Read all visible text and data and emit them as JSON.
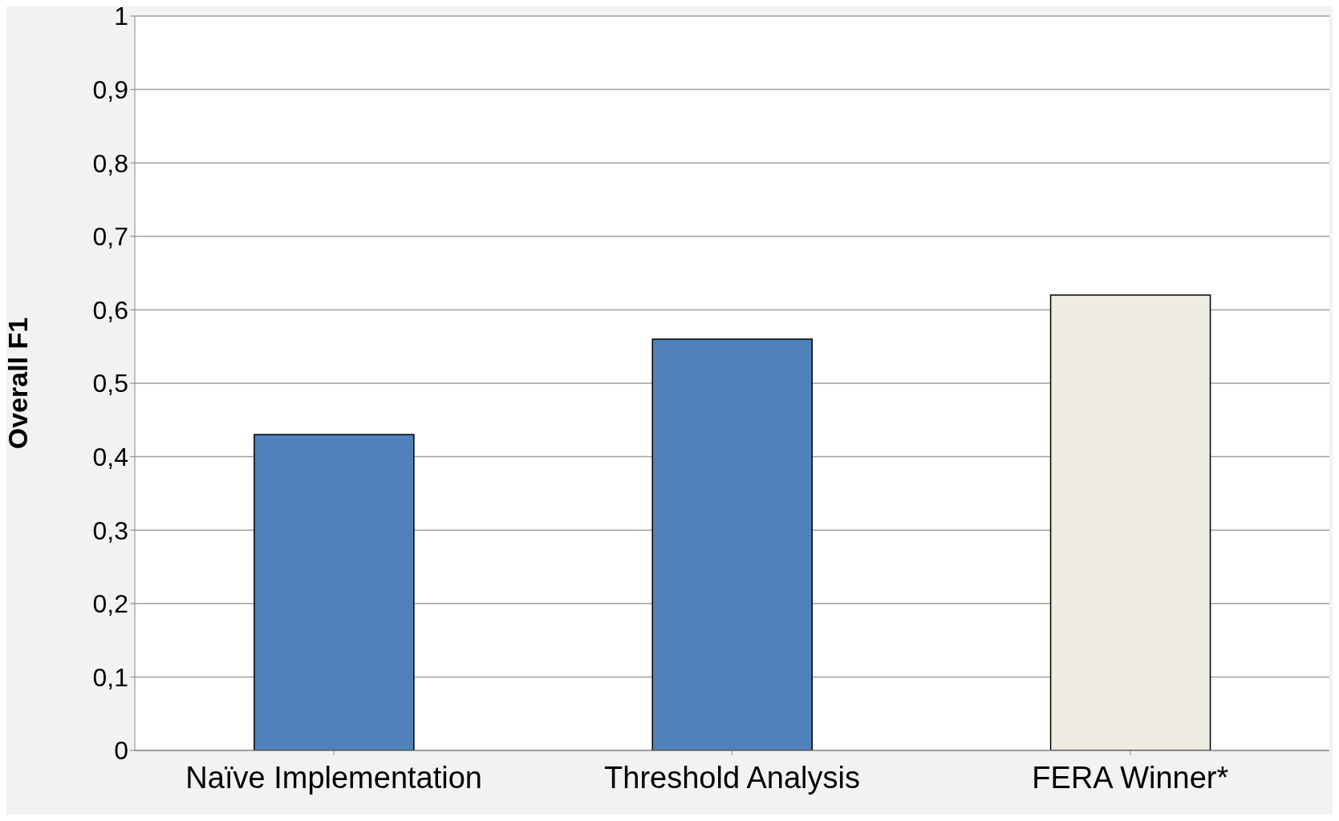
{
  "chart_data": {
    "type": "bar",
    "ylabel": "Overall F1",
    "categories": [
      "Naïve Implementation",
      "Threshold Analysis",
      "FERA Winner*"
    ],
    "values": [
      0.43,
      0.56,
      0.62
    ],
    "colors": [
      "#4f81bd",
      "#4f81bd",
      "#eeece1"
    ],
    "ylim": [
      0,
      1
    ],
    "yticks": [
      {
        "value": 0,
        "label": "0"
      },
      {
        "value": 0.1,
        "label": "0,1"
      },
      {
        "value": 0.2,
        "label": "0,2"
      },
      {
        "value": 0.3,
        "label": "0,3"
      },
      {
        "value": 0.4,
        "label": "0,4"
      },
      {
        "value": 0.5,
        "label": "0,5"
      },
      {
        "value": 0.6,
        "label": "0,6"
      },
      {
        "value": 0.7,
        "label": "0,7"
      },
      {
        "value": 0.8,
        "label": "0,8"
      },
      {
        "value": 0.9,
        "label": "0,9"
      },
      {
        "value": 1,
        "label": "1"
      }
    ],
    "grid": "y",
    "legend": false
  }
}
